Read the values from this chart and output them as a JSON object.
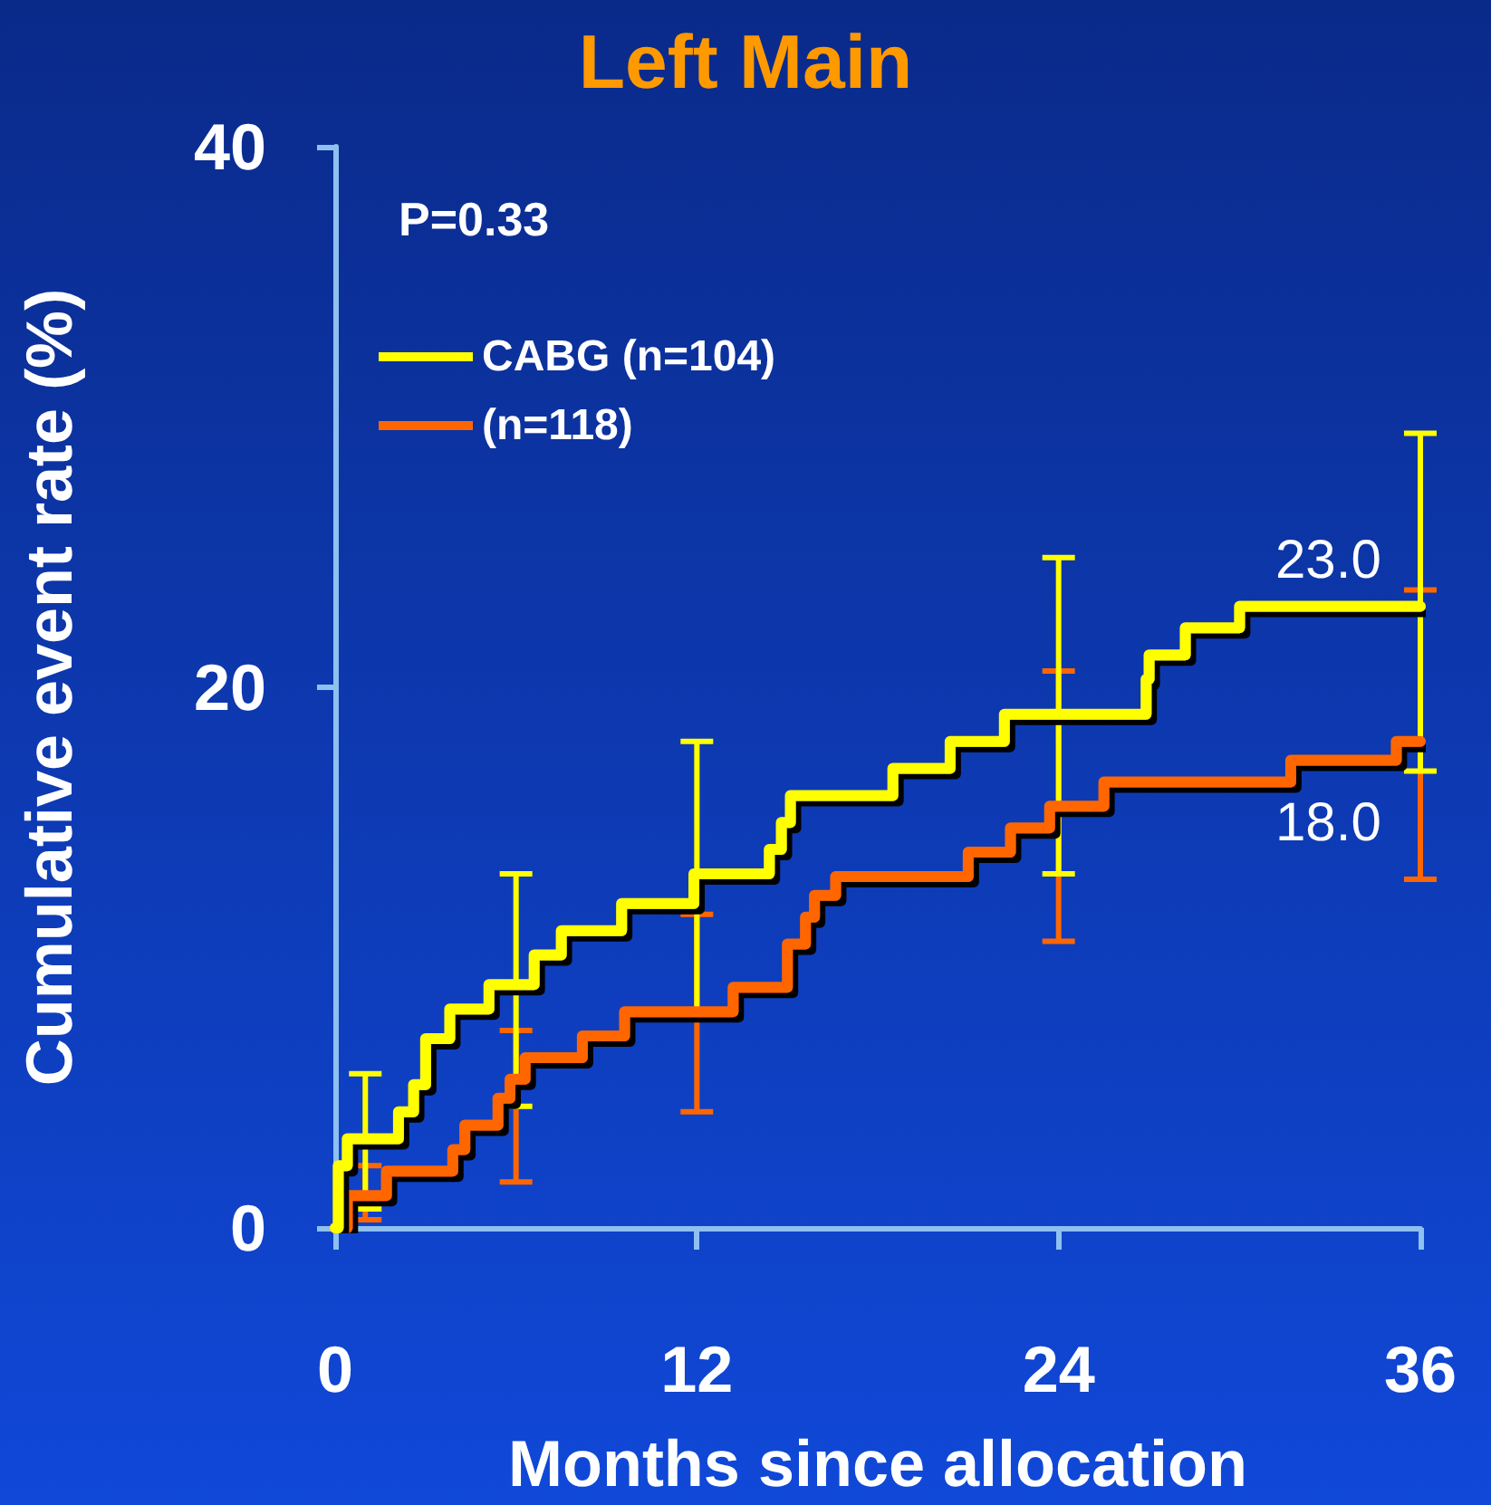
{
  "chart_data": {
    "type": "step",
    "title": "Left Main",
    "xlabel": "Months since allocation",
    "ylabel": "Cumulative event rate (%)",
    "xlim": [
      0,
      36
    ],
    "xticks": [
      0,
      12,
      24,
      36
    ],
    "ylim": [
      0,
      40
    ],
    "yticks": [
      0,
      20,
      40
    ],
    "grid": false,
    "legend": "top left",
    "marker": "none",
    "line_style": "solid",
    "annotations": [
      "P=0.33"
    ],
    "series": [
      {
        "name": "CABG (n=104)",
        "color": "#ffff00",
        "x": [
          0,
          0.1,
          0.4,
          1,
          2.1,
          2.6,
          3.0,
          3.8,
          5.1,
          6,
          6.6,
          7.5,
          9.5,
          11.9,
          12,
          14.4,
          14.8,
          15.1,
          18.5,
          20.4,
          22.2,
          24,
          26.9,
          27.0,
          28.2,
          30.0,
          36
        ],
        "values": [
          0,
          2.3,
          3.3,
          3.3,
          4.3,
          5.3,
          7.0,
          8.1,
          9.0,
          9.0,
          10.1,
          11.0,
          12.0,
          13.1,
          13.1,
          14.0,
          15.0,
          16.0,
          17.0,
          18.0,
          19.0,
          19.0,
          20.3,
          21.2,
          22.2,
          23.0,
          23.0
        ],
        "errors": [
          null,
          null,
          null,
          [
            0.7,
            5.7
          ],
          null,
          null,
          null,
          null,
          null,
          [
            4.5,
            13.1
          ],
          null,
          null,
          null,
          null,
          [
            7.9,
            18.0
          ],
          null,
          null,
          null,
          null,
          null,
          null,
          [
            13.1,
            24.8
          ],
          null,
          null,
          null,
          null,
          [
            16.9,
            29.4
          ]
        ],
        "value_labels": [
          null,
          null,
          null,
          null,
          null,
          null,
          null,
          null,
          null,
          null,
          null,
          null,
          null,
          null,
          null,
          null,
          null,
          null,
          null,
          null,
          null,
          null,
          null,
          null,
          null,
          null,
          "23.0"
        ]
      },
      {
        "name": "(n=118)",
        "color": "#ff6600",
        "x": [
          0,
          0.4,
          1,
          1.7,
          3.9,
          4.3,
          5.4,
          5.8,
          6,
          6.3,
          8.2,
          9.6,
          12,
          13.2,
          15.0,
          15.6,
          15.9,
          16.6,
          21.0,
          22.4,
          23.7,
          24,
          25.5,
          31.7,
          35.2,
          36
        ],
        "values": [
          0,
          1.2,
          1.2,
          2.1,
          2.9,
          3.8,
          4.8,
          5.5,
          5.5,
          6.3,
          7.1,
          8.0,
          8.0,
          8.9,
          10.5,
          11.5,
          12.3,
          13.0,
          13.9,
          14.8,
          15.6,
          15.6,
          16.5,
          17.3,
          18.0,
          18.0
        ],
        "errors": [
          null,
          null,
          [
            0.3,
            2.3
          ],
          null,
          null,
          null,
          null,
          null,
          [
            1.7,
            7.3
          ],
          null,
          null,
          null,
          [
            4.3,
            11.6
          ],
          null,
          null,
          null,
          null,
          null,
          null,
          null,
          null,
          [
            10.6,
            20.6
          ],
          null,
          null,
          null,
          [
            12.9,
            23.6
          ]
        ],
        "value_labels": [
          null,
          null,
          null,
          null,
          null,
          null,
          null,
          null,
          null,
          null,
          null,
          null,
          null,
          null,
          null,
          null,
          null,
          null,
          null,
          null,
          null,
          null,
          null,
          null,
          null,
          "18.0"
        ]
      }
    ]
  }
}
